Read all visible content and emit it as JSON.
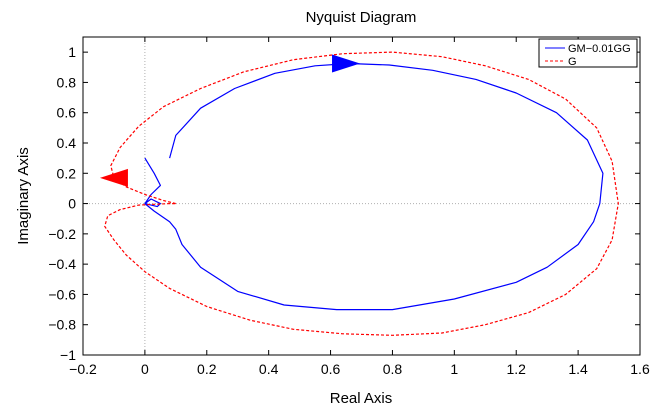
{
  "chart_data": {
    "type": "line",
    "title": "Nyquist Diagram",
    "xlabel": "Real Axis",
    "ylabel": "Imaginary Axis",
    "xlim": [
      -0.2,
      1.6
    ],
    "ylim": [
      -1,
      1.1
    ],
    "xticks": [
      -0.2,
      0,
      0.2,
      0.4,
      0.6,
      0.8,
      1,
      1.2,
      1.4,
      1.6
    ],
    "xtick_labels": [
      "−0.2",
      "0",
      "0.2",
      "0.4",
      "0.6",
      "0.8",
      "1",
      "1.2",
      "1.4",
      "1.6"
    ],
    "yticks": [
      -1,
      -0.8,
      -0.6,
      -0.4,
      -0.2,
      0,
      0.2,
      0.4,
      0.6,
      0.8,
      1
    ],
    "ytick_labels": [
      "−1",
      "−0.8",
      "−0.6",
      "−0.4",
      "−0.2",
      "0",
      "0.2",
      "0.4",
      "0.6",
      "0.8",
      "1"
    ],
    "grid": false,
    "legend_position": "top-right",
    "series": [
      {
        "name": "GM−0.01GG",
        "color": "#0000ff",
        "dash": "solid",
        "x": [
          0.08,
          0.1,
          0.18,
          0.29,
          0.42,
          0.55,
          0.66,
          0.79,
          0.93,
          1.07,
          1.2,
          1.33,
          1.43,
          1.48,
          1.47,
          1.45,
          1.4,
          1.3,
          1.2,
          1.0,
          0.8,
          0.62,
          0.45,
          0.3,
          0.18,
          0.12,
          0.1,
          0.08,
          0.03,
          0.0,
          0.02,
          0.05,
          0.04,
          0.0,
          0.02,
          0.05,
          0.03,
          0.0
        ],
        "y": [
          0.3,
          0.45,
          0.63,
          0.76,
          0.86,
          0.91,
          0.925,
          0.915,
          0.88,
          0.82,
          0.73,
          0.6,
          0.42,
          0.2,
          0.0,
          -0.12,
          -0.27,
          -0.42,
          -0.52,
          -0.63,
          -0.7,
          -0.7,
          -0.67,
          -0.58,
          -0.42,
          -0.27,
          -0.17,
          -0.12,
          -0.05,
          0.0,
          0.03,
          0.0,
          -0.02,
          0.0,
          0.06,
          0.12,
          0.2,
          0.3
        ],
        "arrow": {
          "x": 0.65,
          "y": 0.925,
          "direction": "right"
        }
      },
      {
        "name": "G",
        "color": "#ff0000",
        "dash": "dashed",
        "x": [
          0.1,
          0.06,
          0.0,
          -0.06,
          -0.1,
          -0.11,
          -0.08,
          -0.02,
          0.06,
          0.18,
          0.32,
          0.48,
          0.64,
          0.8,
          0.96,
          1.1,
          1.24,
          1.36,
          1.46,
          1.51,
          1.53,
          1.51,
          1.46,
          1.36,
          1.24,
          1.1,
          0.96,
          0.8,
          0.64,
          0.48,
          0.34,
          0.2,
          0.08,
          0.0,
          -0.06,
          -0.1,
          -0.13,
          -0.12,
          -0.08,
          -0.02,
          0.03,
          0.08,
          0.1
        ],
        "y": [
          0.0,
          0.02,
          0.06,
          0.11,
          0.17,
          0.25,
          0.37,
          0.51,
          0.64,
          0.76,
          0.87,
          0.95,
          0.99,
          1.0,
          0.97,
          0.91,
          0.82,
          0.69,
          0.5,
          0.28,
          0.0,
          -0.24,
          -0.43,
          -0.6,
          -0.72,
          -0.8,
          -0.855,
          -0.87,
          -0.86,
          -0.83,
          -0.77,
          -0.68,
          -0.56,
          -0.45,
          -0.34,
          -0.24,
          -0.15,
          -0.08,
          -0.04,
          -0.01,
          -0.005,
          0.0,
          0.0
        ],
        "arrow": {
          "x": -0.1,
          "y": 0.17,
          "direction": "left"
        }
      }
    ]
  }
}
